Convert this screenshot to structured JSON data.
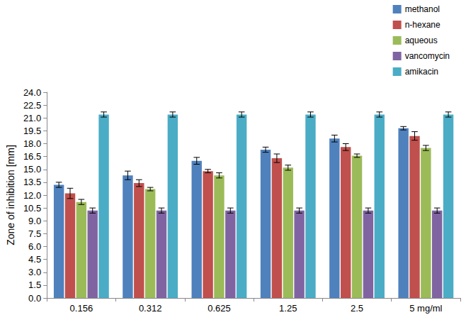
{
  "chart_data": {
    "type": "bar",
    "y_label": "Zone of inhibition [mm]",
    "categories": [
      "0.156",
      "0.312",
      "0.625",
      "1.25",
      "2.5",
      "5 mg/ml"
    ],
    "series": [
      {
        "name": "methanol",
        "color": "#4f81bd",
        "values": [
          13.2,
          14.3,
          16.0,
          17.3,
          18.6,
          19.8
        ],
        "errors": [
          0.3,
          0.5,
          0.4,
          0.3,
          0.4,
          0.2
        ]
      },
      {
        "name": "n-hexane",
        "color": "#c0504d",
        "values": [
          12.2,
          13.4,
          14.8,
          16.3,
          17.6,
          18.9
        ],
        "errors": [
          0.6,
          0.4,
          0.2,
          0.5,
          0.4,
          0.5
        ]
      },
      {
        "name": "aqueous",
        "color": "#9bbb59",
        "values": [
          11.2,
          12.7,
          14.3,
          15.2,
          16.6,
          17.5
        ],
        "errors": [
          0.3,
          0.2,
          0.3,
          0.3,
          0.2,
          0.3
        ]
      },
      {
        "name": "vancomycin",
        "color": "#8064a2",
        "values": [
          10.2,
          10.2,
          10.2,
          10.2,
          10.2,
          10.2
        ],
        "errors": [
          0.3,
          0.3,
          0.3,
          0.3,
          0.3,
          0.3
        ]
      },
      {
        "name": "amikacin",
        "color": "#4bacc6",
        "values": [
          21.4,
          21.4,
          21.4,
          21.4,
          21.4,
          21.4
        ],
        "errors": [
          0.3,
          0.3,
          0.3,
          0.3,
          0.3,
          0.3
        ]
      }
    ],
    "ylim": [
      0,
      24
    ],
    "yticks": [
      {
        "value": 0,
        "label": "0.0"
      },
      1.5,
      {
        "value": 3,
        "label": "3.0"
      },
      4.5,
      {
        "value": 6,
        "label": "6.0"
      },
      7.5,
      {
        "value": 9,
        "label": "9.0"
      },
      10.5,
      {
        "value": 12,
        "label": "12.0"
      },
      13.5,
      {
        "value": 15,
        "label": "15.0"
      },
      16.5,
      {
        "value": 18,
        "label": "18.0"
      },
      19.5,
      {
        "value": 21,
        "label": "21.0"
      },
      22.5,
      {
        "value": 24,
        "label": "24.0"
      }
    ],
    "grid": false,
    "legend": "top-right"
  }
}
